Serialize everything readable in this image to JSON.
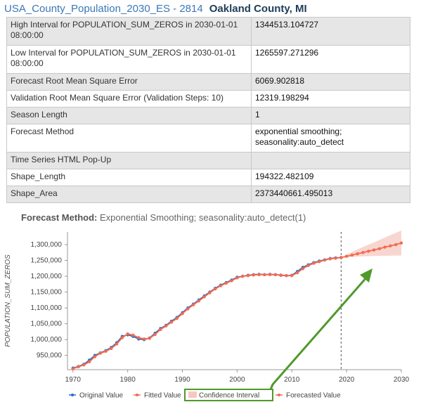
{
  "header": {
    "layer_name": "USA_County_Population_2030_ES - 2814",
    "feature_name": "Oakland County, MI"
  },
  "attributes": [
    {
      "key": "High Interval for POPULATION_SUM_ZEROS in 2030-01-01 08:00:00",
      "value": "1344513.104727"
    },
    {
      "key": "Low Interval for POPULATION_SUM_ZEROS in 2030-01-01 08:00:00",
      "value": "1265597.271296"
    },
    {
      "key": "Forecast Root Mean Square Error",
      "value": "6069.902818"
    },
    {
      "key": "Validation Root Mean Square Error (Validation Steps: 10)",
      "value": "12319.198294"
    },
    {
      "key": "Season Length",
      "value": "1"
    },
    {
      "key": "Forecast Method",
      "value": "exponential smoothing; seasonality:auto_detect"
    },
    {
      "key": "Time Series HTML Pop-Up",
      "value": ""
    },
    {
      "key": "Shape_Length",
      "value": "194322.482109"
    },
    {
      "key": "Shape_Area",
      "value": "2373440661.495013"
    }
  ],
  "chart_title": {
    "label": "Forecast Method:",
    "text": "Exponential Smoothing; seasonality:auto_detect(1)"
  },
  "chart_data": {
    "type": "line",
    "title": "Forecast Method: Exponential Smoothing; seasonality:auto_detect(1)",
    "xlabel": "",
    "ylabel": "POPULATION_SUM_ZEROS",
    "xlim": [
      1969,
      2030
    ],
    "ylim": [
      905000,
      1340000
    ],
    "x_ticks": [
      1970,
      1980,
      1990,
      2000,
      2010,
      2020,
      2030
    ],
    "y_ticks": [
      950000,
      1000000,
      1050000,
      1100000,
      1150000,
      1200000,
      1250000,
      1300000
    ],
    "y_tick_labels": [
      "950,000",
      "1,000,000",
      "1,050,000",
      "1,100,000",
      "1,150,000",
      "1,200,000",
      "1,250,000",
      "1,300,000"
    ],
    "forecast_start": 2019,
    "colors": {
      "original": "#2b6cc4",
      "fitted": "#f26b4f",
      "confidence": "#f6c8c0",
      "forecast": "#f26b4f",
      "divider": "#555555",
      "annotation": "#4f9a2b"
    },
    "series": [
      {
        "name": "Original Value",
        "x": [
          1970,
          1971,
          1972,
          1973,
          1974,
          1975,
          1976,
          1977,
          1978,
          1979,
          1980,
          1981,
          1982,
          1983,
          1984,
          1985,
          1986,
          1987,
          1988,
          1989,
          1990,
          1991,
          1992,
          1993,
          1994,
          1995,
          1996,
          1997,
          1998,
          1999,
          2000,
          2001,
          2002,
          2003,
          2004,
          2005,
          2006,
          2007,
          2008,
          2009,
          2010,
          2011,
          2012,
          2013,
          2014,
          2015,
          2016,
          2017,
          2018,
          2019
        ],
        "values": [
          910000,
          915000,
          922000,
          935000,
          950000,
          958000,
          965000,
          975000,
          990000,
          1010000,
          1015000,
          1010000,
          1002000,
          1000000,
          1005000,
          1020000,
          1035000,
          1045000,
          1058000,
          1070000,
          1085000,
          1100000,
          1112000,
          1125000,
          1138000,
          1150000,
          1162000,
          1172000,
          1180000,
          1188000,
          1197000,
          1200000,
          1203000,
          1205000,
          1206000,
          1205000,
          1206000,
          1205000,
          1203000,
          1202000,
          1203000,
          1215000,
          1228000,
          1236000,
          1243000,
          1248000,
          1252000,
          1256000,
          1258000,
          1259000
        ]
      },
      {
        "name": "Fitted Value",
        "x": [
          1970,
          1971,
          1972,
          1973,
          1974,
          1975,
          1976,
          1977,
          1978,
          1979,
          1980,
          1981,
          1982,
          1983,
          1984,
          1985,
          1986,
          1987,
          1988,
          1989,
          1990,
          1991,
          1992,
          1993,
          1994,
          1995,
          1996,
          1997,
          1998,
          1999,
          2000,
          2001,
          2002,
          2003,
          2004,
          2005,
          2006,
          2007,
          2008,
          2009,
          2010,
          2011,
          2012,
          2013,
          2014,
          2015,
          2016,
          2017,
          2018,
          2019
        ],
        "values": [
          908000,
          914000,
          920000,
          930000,
          946000,
          957000,
          963000,
          972000,
          986000,
          1006000,
          1018000,
          1014000,
          1006000,
          1002000,
          1004000,
          1016000,
          1032000,
          1043000,
          1055000,
          1067000,
          1082000,
          1097000,
          1110000,
          1122000,
          1135000,
          1148000,
          1160000,
          1170000,
          1178000,
          1186000,
          1195000,
          1200000,
          1202000,
          1204000,
          1205000,
          1205000,
          1205000,
          1205000,
          1204000,
          1202000,
          1202000,
          1211000,
          1224000,
          1234000,
          1241000,
          1246000,
          1251000,
          1255000,
          1257000,
          1259000
        ]
      },
      {
        "name": "Confidence Interval",
        "x": [
          2019,
          2022,
          2025,
          2028,
          2030
        ],
        "lower": [
          1259000,
          1262000,
          1264000,
          1265000,
          1265600
        ],
        "upper": [
          1260000,
          1285000,
          1307000,
          1330000,
          1344500
        ]
      },
      {
        "name": "Forecasted Value",
        "x": [
          2019,
          2020,
          2021,
          2022,
          2023,
          2024,
          2025,
          2026,
          2027,
          2028,
          2029,
          2030
        ],
        "values": [
          1259000,
          1263000,
          1267000,
          1271000,
          1275000,
          1279000,
          1283000,
          1287000,
          1292000,
          1296000,
          1300000,
          1305000
        ]
      }
    ],
    "legend": {
      "position": "bottom",
      "items": [
        {
          "label": "Original Value",
          "kind": "line-dot",
          "color": "#2b6cc4"
        },
        {
          "label": "Fitted Value",
          "kind": "line-dot",
          "color": "#f26b4f"
        },
        {
          "label": "Confidence Interval",
          "kind": "box",
          "color": "#f6c8c0"
        },
        {
          "label": "Forecasted Value",
          "kind": "line-dot",
          "color": "#f26b4f"
        }
      ]
    }
  }
}
